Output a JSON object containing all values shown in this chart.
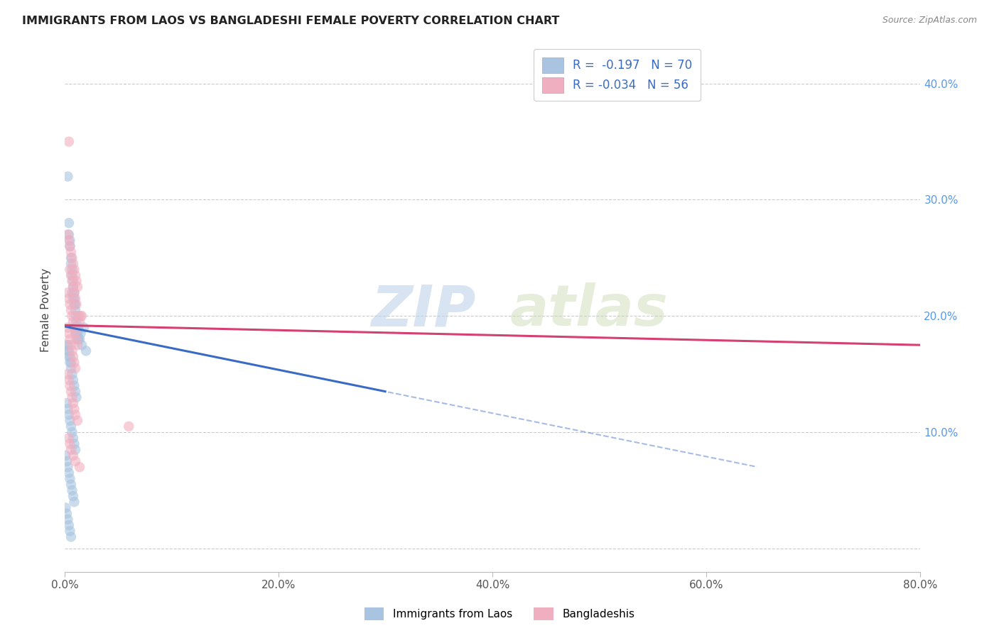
{
  "title": "IMMIGRANTS FROM LAOS VS BANGLADESHI FEMALE POVERTY CORRELATION CHART",
  "source": "Source: ZipAtlas.com",
  "ylabel": "Female Poverty",
  "ytick_vals": [
    0.0,
    0.1,
    0.2,
    0.3,
    0.4
  ],
  "ytick_labels": [
    "",
    "10.0%",
    "20.0%",
    "30.0%",
    "40.0%"
  ],
  "xtick_vals": [
    0.0,
    0.2,
    0.4,
    0.6,
    0.8
  ],
  "xtick_labels": [
    "0.0%",
    "20.0%",
    "40.0%",
    "60.0%",
    "80.0%"
  ],
  "xlim": [
    0.0,
    0.8
  ],
  "ylim": [
    -0.02,
    0.43
  ],
  "r_laos": -0.197,
  "n_laos": 70,
  "r_bang": -0.034,
  "n_bang": 56,
  "color_laos": "#a8c4e0",
  "color_bang": "#f0afc0",
  "line_color_laos": "#3a6bc4",
  "line_color_bang": "#d44070",
  "legend_label_laos": "Immigrants from Laos",
  "legend_label_bang": "Bangladeshis",
  "watermark_zip": "ZIP",
  "watermark_atlas": "atlas",
  "laos_x": [
    0.003,
    0.004,
    0.004,
    0.005,
    0.005,
    0.006,
    0.006,
    0.007,
    0.007,
    0.008,
    0.008,
    0.009,
    0.009,
    0.01,
    0.01,
    0.011,
    0.011,
    0.012,
    0.012,
    0.013,
    0.003,
    0.004,
    0.005,
    0.006,
    0.007,
    0.008,
    0.009,
    0.01,
    0.011,
    0.012,
    0.002,
    0.003,
    0.004,
    0.005,
    0.006,
    0.007,
    0.008,
    0.009,
    0.01,
    0.011,
    0.002,
    0.003,
    0.004,
    0.005,
    0.006,
    0.007,
    0.008,
    0.009,
    0.01,
    0.013,
    0.001,
    0.002,
    0.003,
    0.004,
    0.005,
    0.006,
    0.007,
    0.008,
    0.009,
    0.014,
    0.001,
    0.002,
    0.003,
    0.004,
    0.005,
    0.006,
    0.015,
    0.016,
    0.018,
    0.02
  ],
  "laos_y": [
    0.32,
    0.28,
    0.27,
    0.265,
    0.26,
    0.25,
    0.245,
    0.24,
    0.235,
    0.23,
    0.225,
    0.22,
    0.215,
    0.21,
    0.205,
    0.2,
    0.195,
    0.19,
    0.185,
    0.18,
    0.175,
    0.17,
    0.165,
    0.16,
    0.22,
    0.215,
    0.21,
    0.19,
    0.185,
    0.18,
    0.175,
    0.17,
    0.165,
    0.16,
    0.155,
    0.15,
    0.145,
    0.14,
    0.135,
    0.13,
    0.125,
    0.12,
    0.115,
    0.11,
    0.105,
    0.1,
    0.095,
    0.09,
    0.085,
    0.19,
    0.08,
    0.075,
    0.07,
    0.065,
    0.06,
    0.055,
    0.05,
    0.045,
    0.04,
    0.18,
    0.035,
    0.03,
    0.025,
    0.02,
    0.015,
    0.01,
    0.185,
    0.175,
    0.19,
    0.17
  ],
  "bang_x": [
    0.003,
    0.004,
    0.005,
    0.006,
    0.007,
    0.008,
    0.009,
    0.01,
    0.011,
    0.012,
    0.003,
    0.004,
    0.005,
    0.006,
    0.007,
    0.008,
    0.009,
    0.01,
    0.011,
    0.012,
    0.004,
    0.005,
    0.006,
    0.007,
    0.008,
    0.009,
    0.01,
    0.011,
    0.013,
    0.014,
    0.003,
    0.004,
    0.005,
    0.006,
    0.007,
    0.008,
    0.009,
    0.01,
    0.015,
    0.06,
    0.003,
    0.004,
    0.005,
    0.006,
    0.007,
    0.008,
    0.009,
    0.01,
    0.012,
    0.016,
    0.004,
    0.005,
    0.006,
    0.008,
    0.01,
    0.014
  ],
  "bang_y": [
    0.27,
    0.265,
    0.26,
    0.255,
    0.25,
    0.245,
    0.24,
    0.235,
    0.23,
    0.225,
    0.22,
    0.215,
    0.21,
    0.205,
    0.2,
    0.195,
    0.19,
    0.185,
    0.18,
    0.175,
    0.35,
    0.24,
    0.235,
    0.23,
    0.225,
    0.22,
    0.215,
    0.21,
    0.2,
    0.195,
    0.19,
    0.185,
    0.18,
    0.175,
    0.17,
    0.165,
    0.16,
    0.155,
    0.2,
    0.105,
    0.15,
    0.145,
    0.14,
    0.135,
    0.13,
    0.125,
    0.12,
    0.115,
    0.11,
    0.2,
    0.095,
    0.09,
    0.085,
    0.08,
    0.075,
    0.07
  ]
}
